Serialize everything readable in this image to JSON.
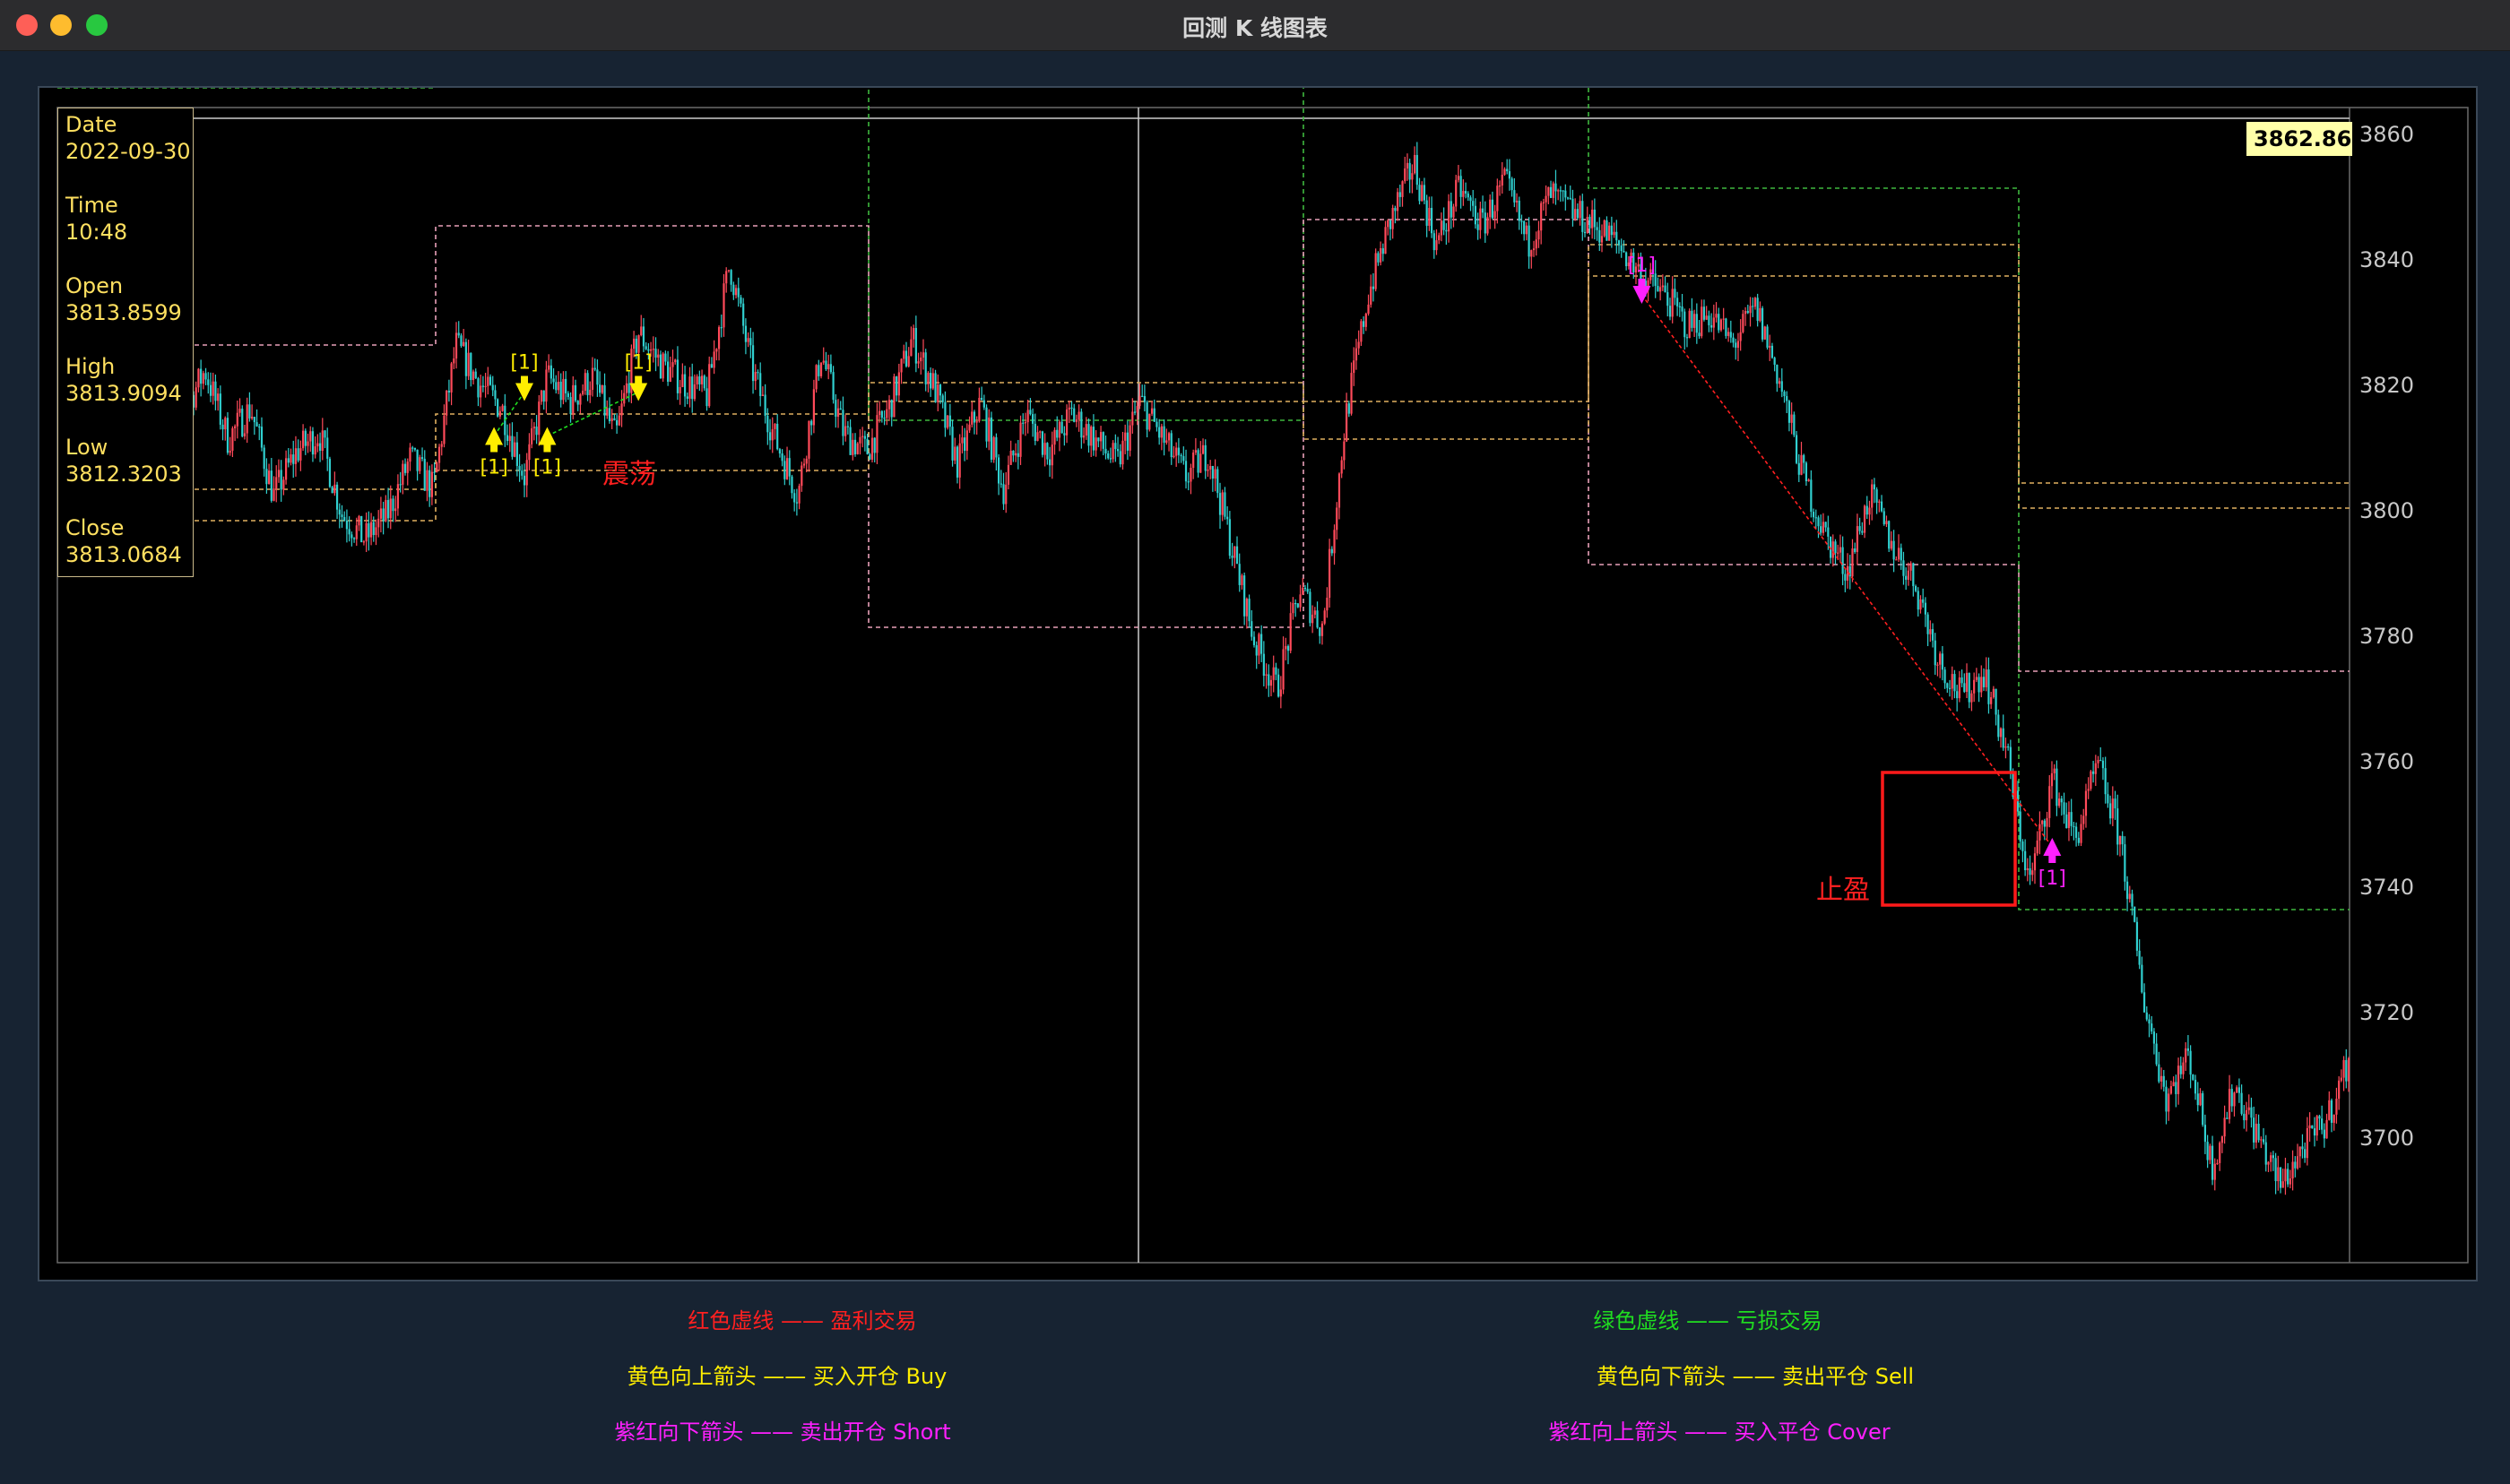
{
  "window": {
    "title": "回测 K 线图表"
  },
  "info_panel": {
    "date_label": "Date",
    "date_value": "2022-09-30",
    "time_label": "Time",
    "time_value": "10:48",
    "open_label": "Open",
    "open_value": "3813.8599",
    "high_label": "High",
    "high_value": "3813.9094",
    "low_label": "Low",
    "low_value": "3812.3203",
    "close_label": "Close",
    "close_value": "3813.0684"
  },
  "cursor_price": "3862.8628",
  "annotations": {
    "oscillation": "震荡",
    "take_profit": "止盈"
  },
  "legend": {
    "red_dashed": "红色虚线 —— 盈利交易",
    "green_dashed": "绿色虚线 —— 亏损交易",
    "yellow_up": "黄色向上箭头 —— 买入开仓 Buy",
    "yellow_down": "黄色向下箭头 —— 卖出平仓 Sell",
    "magenta_down": "紫红向下箭头 —— 卖出开仓 Short",
    "magenta_up": "紫红向上箭头 —— 买入平仓 Cover"
  },
  "colors": {
    "profit": "#ff2020",
    "loss": "#20dd20",
    "buy_sell": "#ffee00",
    "short_cover": "#ff20ff",
    "candle_up": "#ff4a5a",
    "candle_down": "#30d0d0"
  },
  "chart_data": {
    "type": "candlestick",
    "ylim": [
      3685,
      3864
    ],
    "yticks": [
      3700,
      3720,
      3740,
      3760,
      3780,
      3800,
      3820,
      3840,
      3860
    ],
    "close_path": [
      [
        0,
        3810
      ],
      [
        3,
        3816
      ],
      [
        6,
        3823
      ],
      [
        9,
        3812
      ],
      [
        12,
        3817
      ],
      [
        15,
        3803
      ],
      [
        18,
        3810
      ],
      [
        21,
        3813
      ],
      [
        24,
        3800
      ],
      [
        27,
        3796
      ],
      [
        30,
        3800
      ],
      [
        33,
        3809
      ],
      [
        36,
        3804
      ],
      [
        39,
        3827
      ],
      [
        42,
        3821
      ],
      [
        45,
        3817
      ],
      [
        48,
        3806
      ],
      [
        51,
        3822
      ],
      [
        54,
        3818
      ],
      [
        57,
        3822
      ],
      [
        60,
        3812
      ],
      [
        63,
        3829
      ],
      [
        66,
        3824
      ],
      [
        69,
        3821
      ],
      [
        72,
        3819
      ],
      [
        75,
        3840
      ],
      [
        78,
        3823
      ],
      [
        81,
        3812
      ],
      [
        84,
        3803
      ],
      [
        87,
        3826
      ],
      [
        90,
        3813
      ],
      [
        93,
        3810
      ],
      [
        96,
        3817
      ],
      [
        99,
        3828
      ],
      [
        102,
        3820
      ],
      [
        105,
        3808
      ],
      [
        108,
        3818
      ],
      [
        111,
        3804
      ],
      [
        114,
        3816
      ],
      [
        117,
        3810
      ],
      [
        120,
        3816
      ],
      [
        123,
        3812
      ],
      [
        126,
        3808
      ],
      [
        129,
        3818
      ],
      [
        132,
        3812
      ],
      [
        135,
        3806
      ],
      [
        138,
        3810
      ],
      [
        141,
        3795
      ],
      [
        144,
        3780
      ],
      [
        147,
        3772
      ],
      [
        150,
        3788
      ],
      [
        153,
        3782
      ],
      [
        156,
        3815
      ],
      [
        159,
        3835
      ],
      [
        162,
        3847
      ],
      [
        165,
        3856
      ],
      [
        168,
        3843
      ],
      [
        171,
        3852
      ],
      [
        174,
        3846
      ],
      [
        177,
        3853
      ],
      [
        180,
        3843
      ],
      [
        183,
        3851
      ],
      [
        186,
        3848
      ],
      [
        189,
        3846
      ],
      [
        192,
        3843
      ],
      [
        195,
        3838
      ],
      [
        198,
        3835
      ],
      [
        201,
        3830
      ],
      [
        204,
        3832
      ],
      [
        207,
        3827
      ],
      [
        210,
        3833
      ],
      [
        213,
        3822
      ],
      [
        216,
        3807
      ],
      [
        219,
        3797
      ],
      [
        222,
        3791
      ],
      [
        225,
        3803
      ],
      [
        228,
        3795
      ],
      [
        231,
        3789
      ],
      [
        234,
        3777
      ],
      [
        237,
        3771
      ],
      [
        240,
        3775
      ],
      [
        243,
        3762
      ],
      [
        246,
        3741
      ],
      [
        249,
        3758
      ],
      [
        252,
        3748
      ],
      [
        255,
        3760
      ],
      [
        258,
        3748
      ],
      [
        261,
        3723
      ],
      [
        264,
        3707
      ],
      [
        267,
        3714
      ],
      [
        270,
        3696
      ],
      [
        273,
        3709
      ],
      [
        276,
        3701
      ],
      [
        279,
        3693
      ],
      [
        282,
        3699
      ],
      [
        285,
        3703
      ],
      [
        288,
        3713
      ]
    ],
    "trades": [
      {
        "type": "buy",
        "x": 44,
        "price": 3812.5
      },
      {
        "type": "sell",
        "x": 48,
        "price": 3819.5
      },
      {
        "type": "buy",
        "x": 51,
        "price": 3812.5
      },
      {
        "type": "sell",
        "x": 63,
        "price": 3819.5
      },
      {
        "type": "short",
        "x": 195,
        "price": 3835
      },
      {
        "type": "cover",
        "x": 249,
        "price": 3747
      }
    ]
  }
}
